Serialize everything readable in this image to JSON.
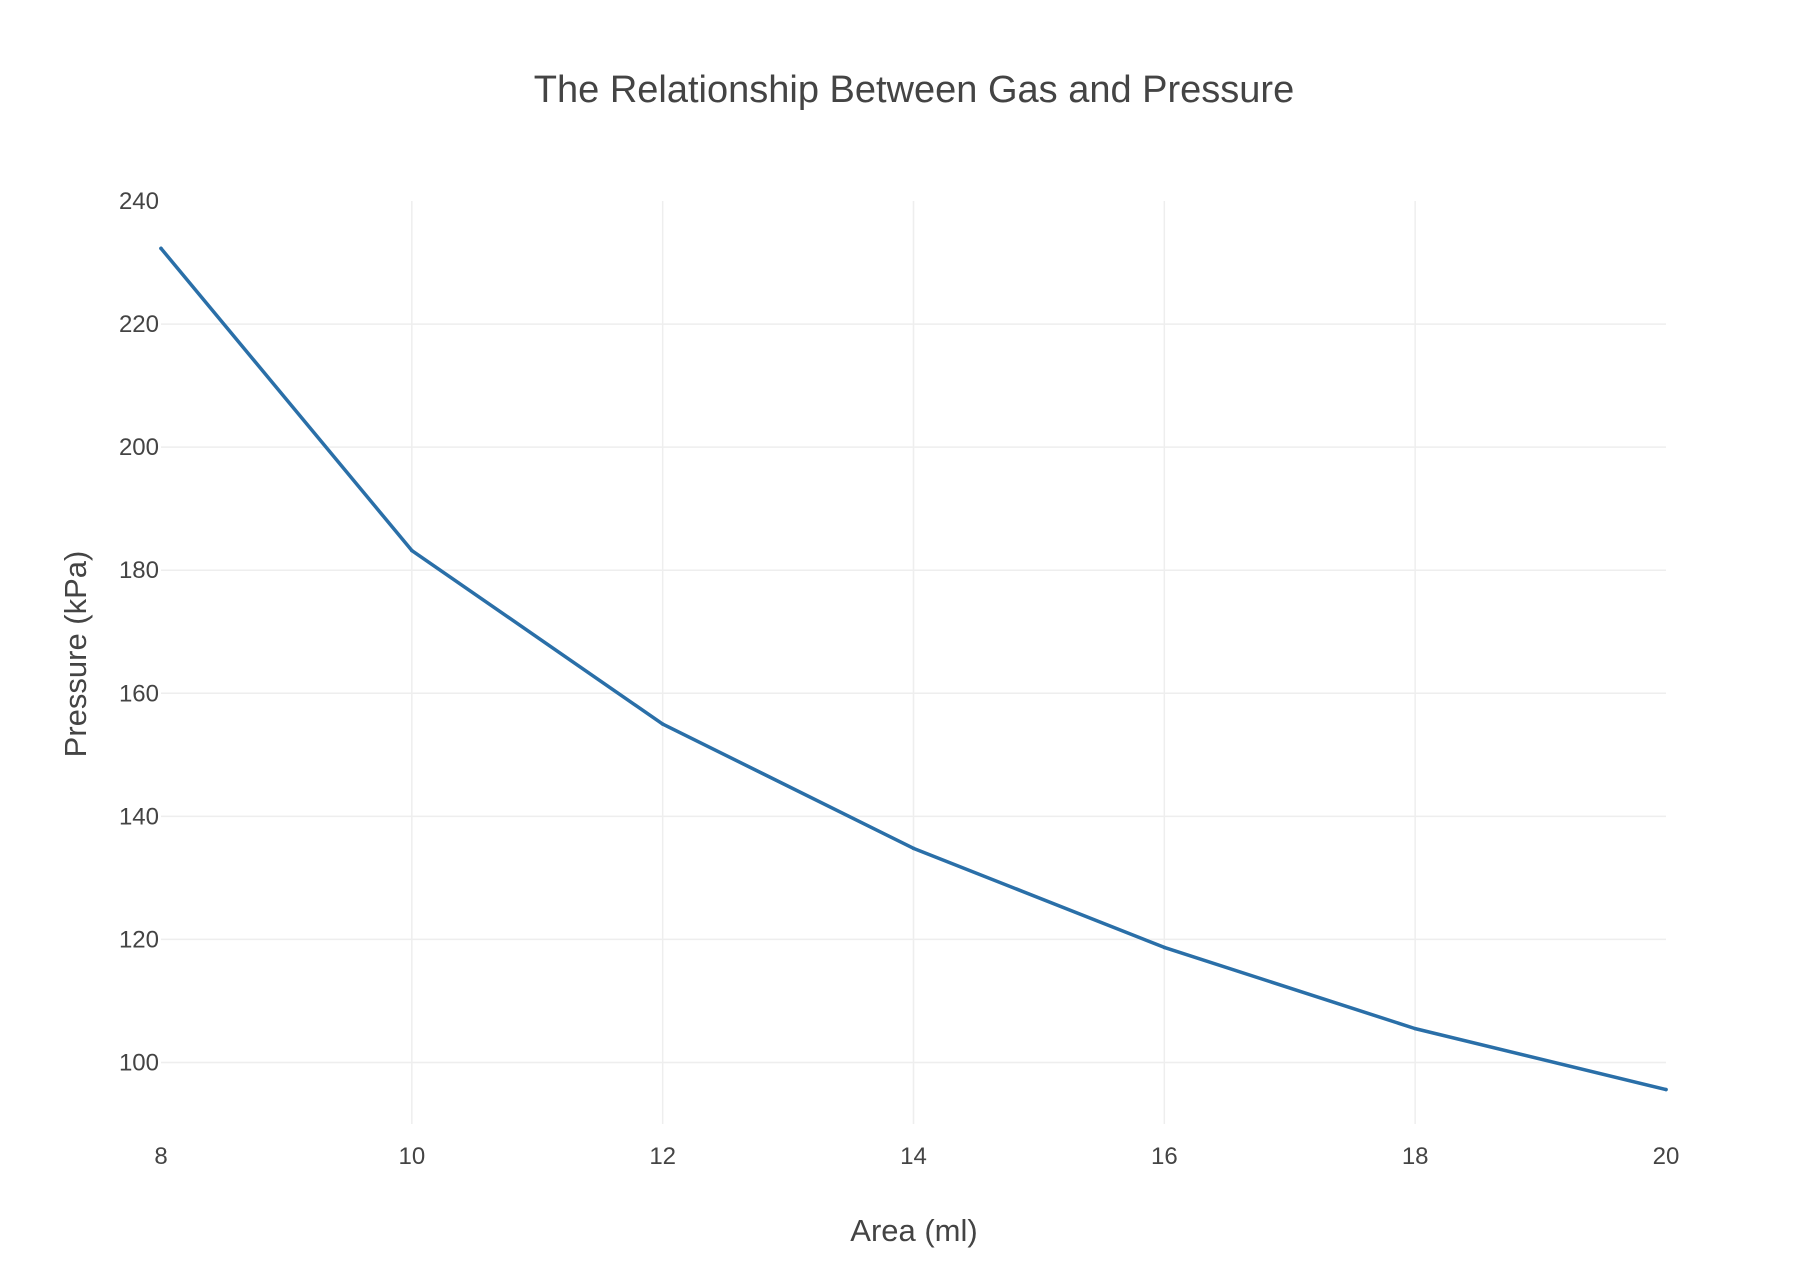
{
  "chart_data": {
    "type": "line",
    "title": "The Relationship Between Gas and Pressure",
    "xlabel": "Area (ml)",
    "ylabel": "Pressure (kPa)",
    "xlim": [
      8,
      20
    ],
    "ylim": [
      90,
      240
    ],
    "xticks": [
      8,
      10,
      12,
      14,
      16,
      18,
      20
    ],
    "yticks": [
      100,
      120,
      140,
      160,
      180,
      200,
      220,
      240
    ],
    "grid": true,
    "colors": {
      "line": "#2a6fa8"
    },
    "series": [
      {
        "x": [
          8,
          10,
          12,
          14,
          16,
          18,
          20
        ],
        "values": [
          232.3,
          183.2,
          155.0,
          134.8,
          118.7,
          105.5,
          95.6
        ]
      }
    ]
  }
}
